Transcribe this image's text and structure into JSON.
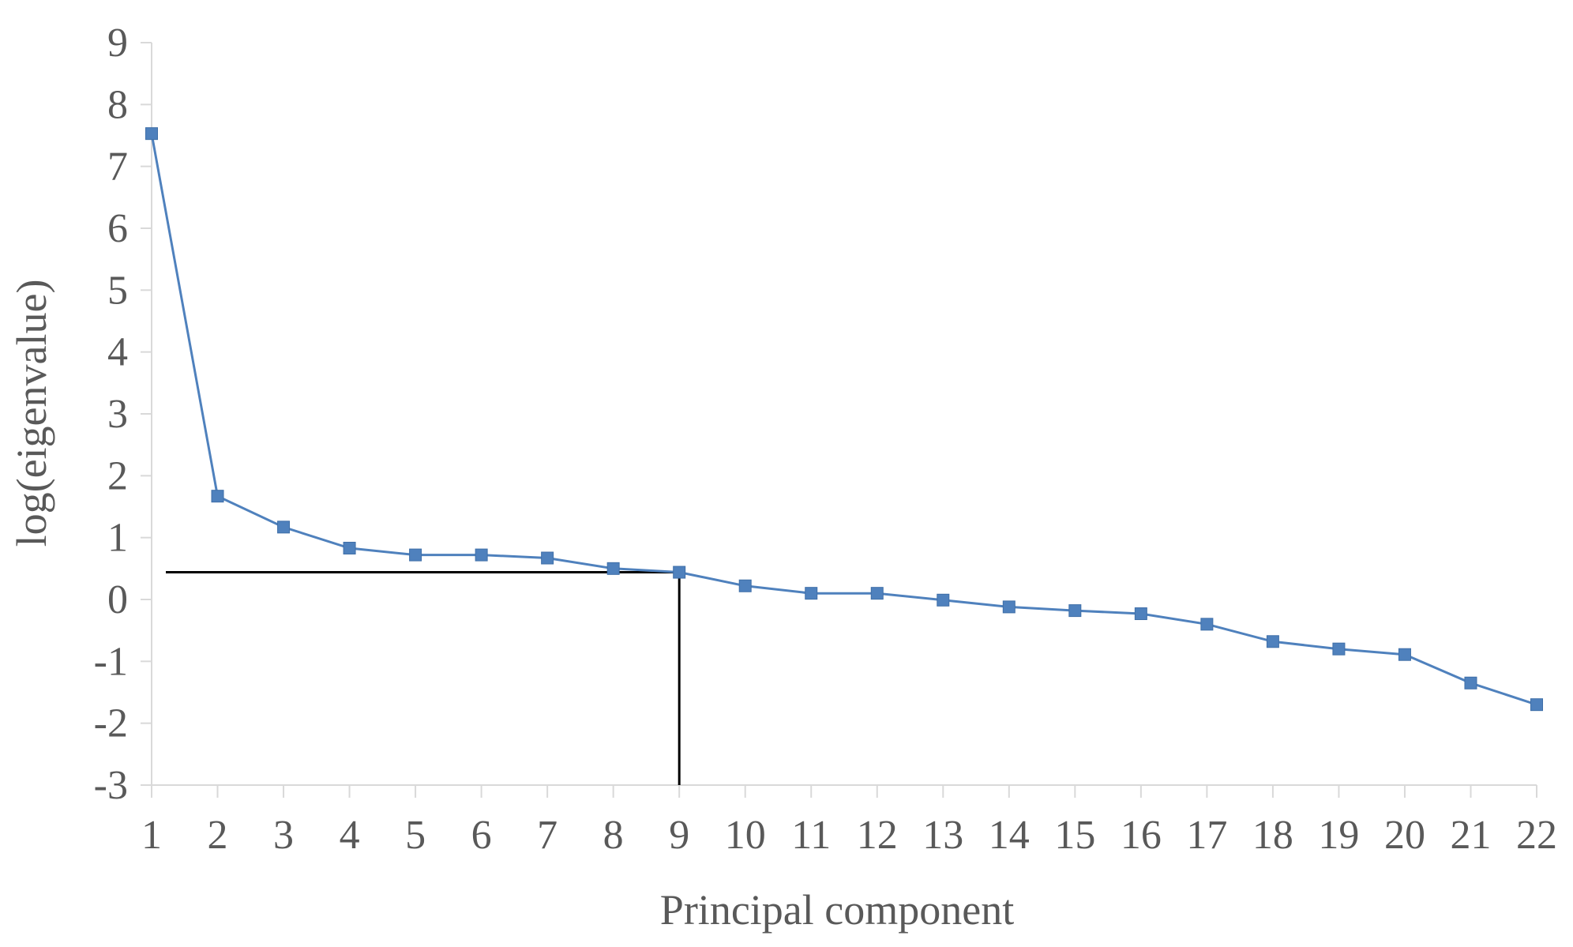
{
  "chart_data": {
    "type": "line",
    "xlabel": "Principal component",
    "ylabel": "log(eigenvalue)",
    "x": [
      1,
      2,
      3,
      4,
      5,
      6,
      7,
      8,
      9,
      10,
      11,
      12,
      13,
      14,
      15,
      16,
      17,
      18,
      19,
      20,
      21,
      22
    ],
    "series": [
      {
        "values": [
          7.53,
          1.67,
          1.17,
          0.83,
          0.72,
          0.72,
          0.67,
          0.5,
          0.44,
          0.22,
          0.1,
          0.1,
          -0.01,
          -0.12,
          -0.18,
          -0.23,
          -0.4,
          -0.68,
          -0.8,
          -0.89,
          -1.35,
          -1.7
        ],
        "color": "#4f81bd",
        "marker": "square"
      }
    ],
    "ylim": [
      -3,
      9
    ],
    "yticks": [
      "9",
      "8",
      "7",
      "6",
      "5",
      "4",
      "3",
      "2",
      "1",
      "0",
      "-1",
      "-2",
      "-3"
    ],
    "xticks": [
      "1",
      "2",
      "3",
      "4",
      "5",
      "6",
      "7",
      "8",
      "9",
      "10",
      "11",
      "12",
      "13",
      "14",
      "15",
      "16",
      "17",
      "18",
      "19",
      "20",
      "21",
      "22"
    ],
    "reference_lines": {
      "x": 9,
      "y": 0.44,
      "color": "#000000"
    },
    "axis_color": "#d9d9d9",
    "grid": false,
    "legend": "none"
  }
}
